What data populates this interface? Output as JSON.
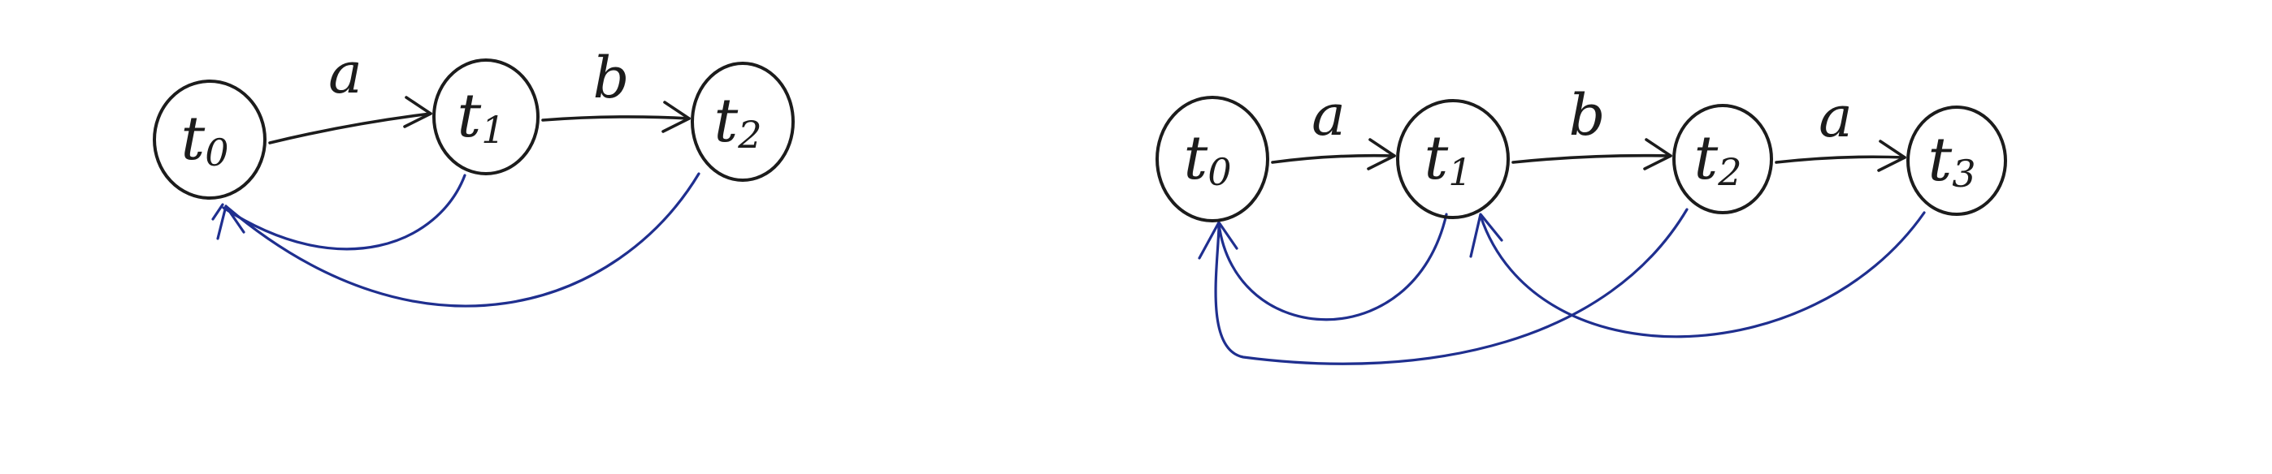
{
  "colors": {
    "ink": "#1c1c1c",
    "failure_link": "#1f2f8f",
    "background": "#ffffff"
  },
  "diagrams": [
    {
      "states": [
        {
          "base": "t",
          "sub": "0"
        },
        {
          "base": "t",
          "sub": "1"
        },
        {
          "base": "t",
          "sub": "2"
        }
      ],
      "transitions": [
        {
          "from": 0,
          "to": 1,
          "label": "a"
        },
        {
          "from": 1,
          "to": 2,
          "label": "b"
        }
      ],
      "failure_links": [
        {
          "from": 1,
          "to": 0
        },
        {
          "from": 2,
          "to": 0
        }
      ]
    },
    {
      "states": [
        {
          "base": "t",
          "sub": "0"
        },
        {
          "base": "t",
          "sub": "1"
        },
        {
          "base": "t",
          "sub": "2"
        },
        {
          "base": "t",
          "sub": "3"
        }
      ],
      "transitions": [
        {
          "from": 0,
          "to": 1,
          "label": "a"
        },
        {
          "from": 1,
          "to": 2,
          "label": "b"
        },
        {
          "from": 2,
          "to": 3,
          "label": "a"
        }
      ],
      "failure_links": [
        {
          "from": 1,
          "to": 0
        },
        {
          "from": 2,
          "to": 0
        },
        {
          "from": 3,
          "to": 1
        }
      ]
    }
  ]
}
